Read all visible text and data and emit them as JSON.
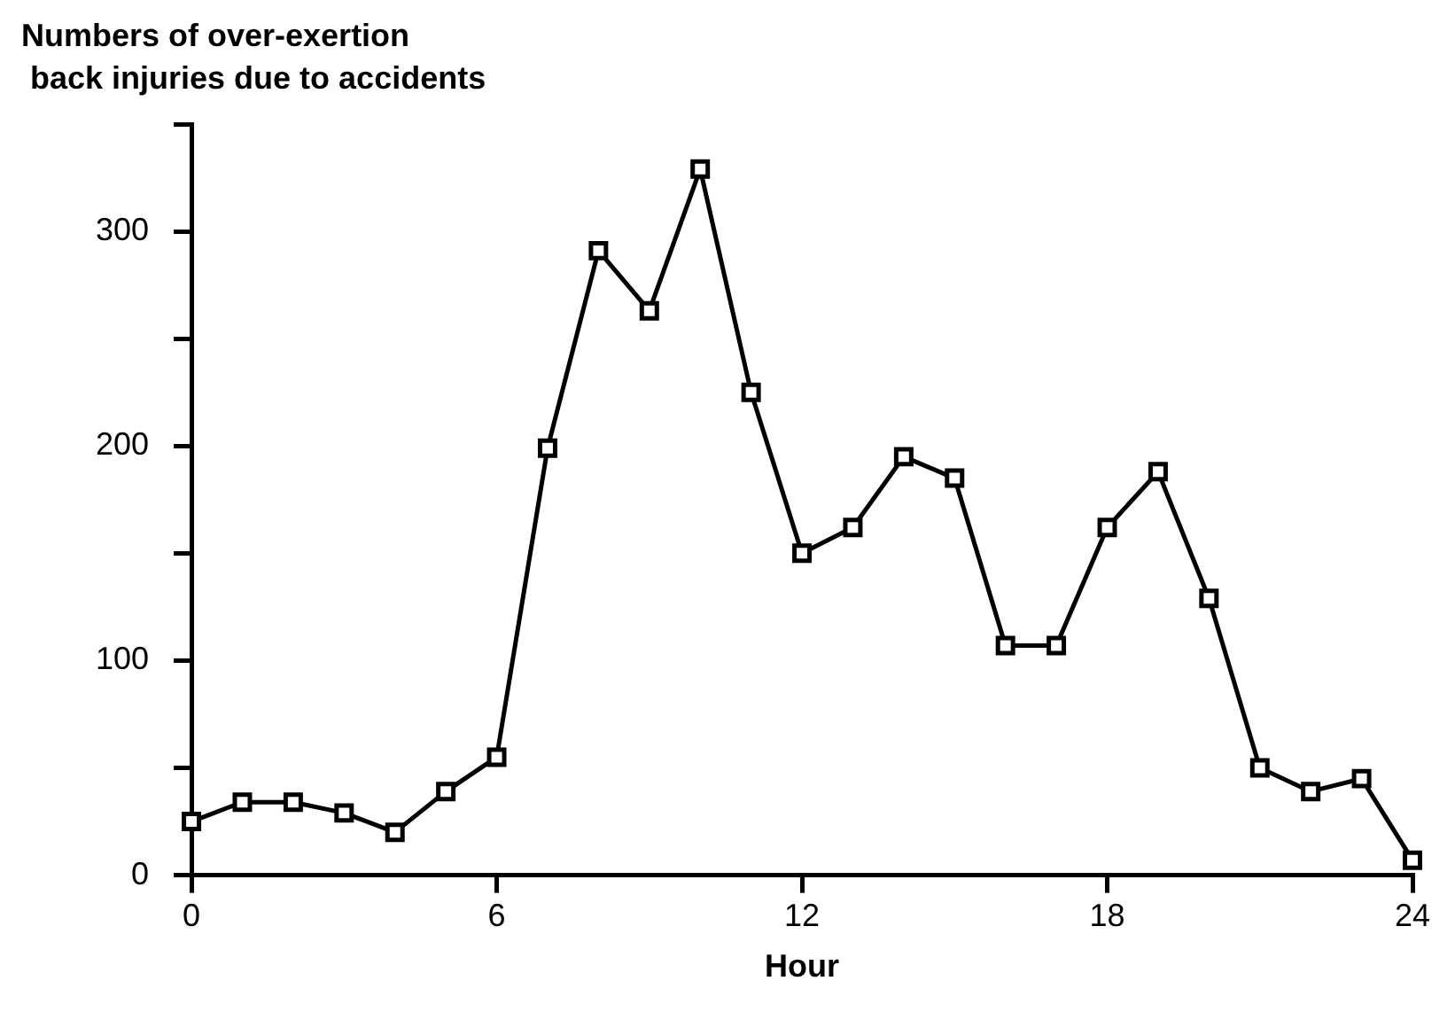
{
  "chart_data": {
    "type": "line",
    "title": "Numbers of over-exertion\n back injuries due to accidents",
    "xlabel": "Hour",
    "x": [
      0,
      1,
      2,
      3,
      4,
      5,
      6,
      7,
      8,
      9,
      10,
      11,
      12,
      13,
      14,
      15,
      16,
      17,
      18,
      19,
      20,
      21,
      22,
      23,
      24
    ],
    "series": [
      {
        "color": "#000000",
        "values": [
          25,
          34,
          34,
          29,
          20,
          39,
          55,
          199,
          291,
          263,
          329,
          225,
          150,
          162,
          195,
          185,
          107,
          107,
          162,
          188,
          129,
          50,
          39,
          45,
          7
        ]
      }
    ],
    "xlim": [
      0,
      24
    ],
    "xticks": [
      0,
      6,
      12,
      18,
      24
    ],
    "ylim": [
      0,
      350
    ],
    "yticks": [
      0,
      {
        "value": 50,
        "label": null
      },
      100,
      {
        "value": 150,
        "label": null
      },
      200,
      {
        "value": 250,
        "label": null
      },
      300,
      {
        "value": 350,
        "label": null
      }
    ],
    "grid": false,
    "legend": false,
    "marker": "square",
    "line_style": "solid"
  }
}
